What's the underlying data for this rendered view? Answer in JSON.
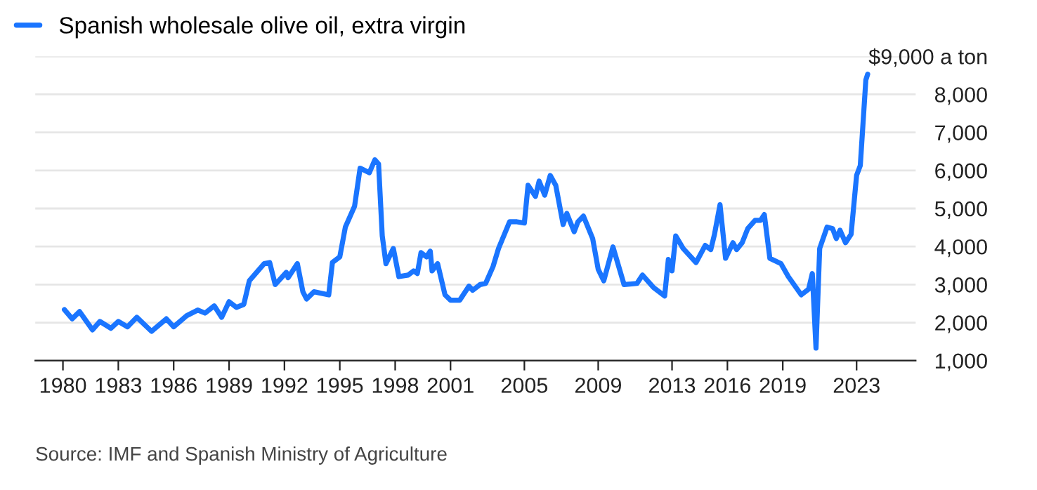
{
  "chart_data": {
    "type": "line",
    "x": [
      1980.08,
      1980.5,
      1980.9,
      1981.6,
      1982.0,
      1982.6,
      1983.0,
      1983.5,
      1984.0,
      1984.8,
      1985.6,
      1986.0,
      1986.7,
      1987.3,
      1987.7,
      1988.2,
      1988.6,
      1989.0,
      1989.4,
      1989.8,
      1990.1,
      1990.9,
      1991.2,
      1991.5,
      1992.1,
      1992.2,
      1992.7,
      1993.0,
      1993.2,
      1993.6,
      1994.4,
      1994.6,
      1995.0,
      1995.3,
      1995.8,
      1996.1,
      1996.6,
      1996.9,
      1997.1,
      1997.3,
      1997.5,
      1997.9,
      1998.2,
      1998.7,
      1999.0,
      1999.2,
      1999.4,
      1999.7,
      1999.9,
      2000.0,
      2000.3,
      2000.7,
      2001.0,
      2001.5,
      2002.0,
      2002.2,
      2002.6,
      2002.9,
      2003.3,
      2003.6,
      2004.2,
      2004.6,
      2005.0,
      2005.2,
      2005.6,
      2005.8,
      2006.1,
      2006.4,
      2006.7,
      2007.1,
      2007.3,
      2007.7,
      2007.9,
      2008.2,
      2008.7,
      2009.0,
      2009.3,
      2009.8,
      2010.4,
      2011.1,
      2011.4,
      2012.0,
      2012.6,
      2012.8,
      2013.0,
      2013.2,
      2013.6,
      2014.3,
      2014.8,
      2015.1,
      2015.3,
      2015.6,
      2015.9,
      2016.3,
      2016.5,
      2016.8,
      2017.1,
      2017.5,
      2017.8,
      2018.0,
      2018.3,
      2018.9,
      2019.3,
      2020.0,
      2020.4,
      2020.6,
      2020.8,
      2021.0,
      2021.4,
      2021.7,
      2021.9,
      2022.1,
      2022.4,
      2022.7,
      2023.0,
      2023.2,
      2023.5,
      2023.6
    ],
    "series": [
      {
        "name": "Spanish wholesale olive oil, extra virgin",
        "color": "#1a75ff",
        "values": [
          2340,
          2100,
          2290,
          1810,
          2030,
          1850,
          2030,
          1890,
          2140,
          1770,
          2100,
          1890,
          2180,
          2330,
          2250,
          2440,
          2140,
          2550,
          2400,
          2480,
          3100,
          3550,
          3580,
          3000,
          3320,
          3180,
          3550,
          2810,
          2620,
          2810,
          2730,
          3580,
          3730,
          4510,
          5060,
          6060,
          5940,
          6280,
          6170,
          4280,
          3550,
          3950,
          3210,
          3250,
          3360,
          3290,
          3840,
          3730,
          3880,
          3360,
          3550,
          2730,
          2590,
          2590,
          2960,
          2850,
          3000,
          3030,
          3470,
          3950,
          4650,
          4650,
          4620,
          5610,
          5320,
          5720,
          5350,
          5870,
          5610,
          4580,
          4870,
          4390,
          4650,
          4800,
          4210,
          3400,
          3100,
          3990,
          3000,
          3030,
          3250,
          2920,
          2700,
          3660,
          3360,
          4280,
          3950,
          3580,
          4030,
          3920,
          4320,
          5100,
          3690,
          4100,
          3920,
          4100,
          4470,
          4690,
          4690,
          4840,
          3690,
          3550,
          3210,
          2730,
          2880,
          3290,
          1330,
          3950,
          4510,
          4470,
          4210,
          4430,
          4100,
          4320,
          5870,
          6130,
          8380,
          8530
        ]
      }
    ],
    "xlim": [
      1978.5,
      2026.2
    ],
    "xticks": [
      1980,
      1983,
      1986,
      1989,
      1992,
      1995,
      1998,
      2001,
      2005,
      2009,
      2013,
      2016,
      2019,
      2023
    ],
    "ylim": [
      1000,
      9000
    ],
    "yticks": [
      {
        "value": 1000,
        "label": "1,000"
      },
      {
        "value": 2000,
        "label": "2,000"
      },
      {
        "value": 3000,
        "label": "3,000"
      },
      {
        "value": 4000,
        "label": "4,000"
      },
      {
        "value": 5000,
        "label": "5,000"
      },
      {
        "value": 6000,
        "label": "6,000"
      },
      {
        "value": 7000,
        "label": "7,000"
      },
      {
        "value": 8000,
        "label": "8,000"
      },
      {
        "value": 9000,
        "label": "$9,000 a ton"
      }
    ],
    "grid": "y",
    "legend": "top left",
    "line_style": "solid",
    "marker": "none",
    "annotations": [
      "Source: IMF and Spanish Ministry of Agriculture"
    ]
  }
}
